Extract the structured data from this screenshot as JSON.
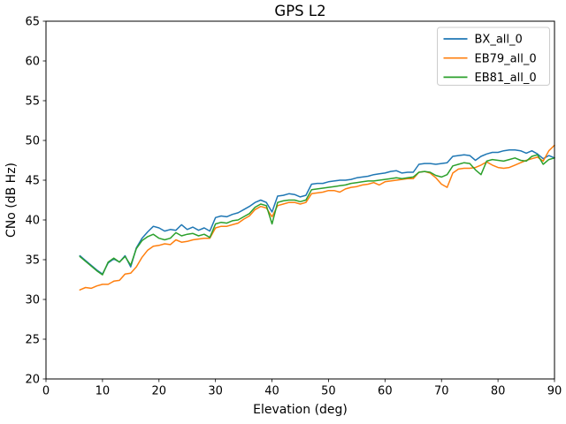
{
  "chart_data": {
    "type": "line",
    "title": "GPS L2",
    "xlabel": "Elevation (deg)",
    "ylabel": "CNo (dB Hz)",
    "xlim": [
      0,
      90
    ],
    "ylim": [
      20,
      65
    ],
    "xticks": [
      0,
      10,
      20,
      30,
      40,
      50,
      60,
      70,
      80,
      90
    ],
    "yticks": [
      20,
      25,
      30,
      35,
      40,
      45,
      50,
      55,
      60,
      65
    ],
    "grid": false,
    "legend_position": "upper right",
    "axis_color": "#000000",
    "x": [
      6,
      7,
      8,
      9,
      10,
      11,
      12,
      13,
      14,
      15,
      16,
      17,
      18,
      19,
      20,
      21,
      22,
      23,
      24,
      25,
      26,
      27,
      28,
      29,
      30,
      31,
      32,
      33,
      34,
      35,
      36,
      37,
      38,
      39,
      40,
      41,
      42,
      43,
      44,
      45,
      46,
      47,
      48,
      49,
      50,
      51,
      52,
      53,
      54,
      55,
      56,
      57,
      58,
      59,
      60,
      61,
      62,
      63,
      64,
      65,
      66,
      67,
      68,
      69,
      70,
      71,
      72,
      73,
      74,
      75,
      76,
      77,
      78,
      79,
      80,
      81,
      82,
      83,
      84,
      85,
      86,
      87,
      88,
      89,
      90
    ],
    "series": [
      {
        "name": "BX_all_0",
        "color": "#1f77b4",
        "values": [
          35.5,
          34.9,
          34.3,
          33.7,
          33.2,
          34.6,
          35.1,
          34.7,
          35.5,
          34.1,
          36.5,
          37.7,
          38.5,
          39.2,
          39.0,
          38.6,
          38.8,
          38.7,
          39.4,
          38.8,
          39.1,
          38.7,
          39.0,
          38.6,
          40.3,
          40.5,
          40.4,
          40.7,
          40.9,
          41.3,
          41.7,
          42.2,
          42.5,
          42.2,
          41.0,
          43.0,
          43.1,
          43.3,
          43.2,
          42.9,
          43.1,
          44.5,
          44.6,
          44.6,
          44.8,
          44.9,
          45.0,
          45.0,
          45.1,
          45.3,
          45.4,
          45.5,
          45.7,
          45.8,
          45.9,
          46.1,
          46.2,
          45.9,
          46.0,
          46.0,
          47.0,
          47.1,
          47.1,
          47.0,
          47.1,
          47.2,
          48.0,
          48.1,
          48.2,
          48.1,
          47.5,
          48.0,
          48.3,
          48.5,
          48.5,
          48.7,
          48.8,
          48.8,
          48.7,
          48.4,
          48.7,
          48.3,
          47.7,
          48.1,
          47.8
        ]
      },
      {
        "name": "EB79_all_0",
        "color": "#ff7f0e",
        "values": [
          31.2,
          31.5,
          31.4,
          31.7,
          31.9,
          31.9,
          32.3,
          32.4,
          33.2,
          33.3,
          34.1,
          35.3,
          36.2,
          36.7,
          36.8,
          37.0,
          36.9,
          37.5,
          37.2,
          37.3,
          37.5,
          37.6,
          37.7,
          37.7,
          39.0,
          39.2,
          39.2,
          39.4,
          39.6,
          40.1,
          40.5,
          41.3,
          41.7,
          41.5,
          40.4,
          41.8,
          42.0,
          42.2,
          42.2,
          42.0,
          42.2,
          43.3,
          43.4,
          43.5,
          43.7,
          43.7,
          43.5,
          43.9,
          44.1,
          44.2,
          44.4,
          44.5,
          44.7,
          44.4,
          44.8,
          44.9,
          45.0,
          45.1,
          45.2,
          45.2,
          46.0,
          46.1,
          45.9,
          45.3,
          44.5,
          44.1,
          45.9,
          46.4,
          46.5,
          46.5,
          46.6,
          46.9,
          47.3,
          46.9,
          46.6,
          46.5,
          46.6,
          46.9,
          47.2,
          47.5,
          47.7,
          47.9,
          47.4,
          48.7,
          49.4
        ]
      },
      {
        "name": "EB81_all_0",
        "color": "#2ca02c",
        "values": [
          35.4,
          34.8,
          34.2,
          33.6,
          33.1,
          34.7,
          35.2,
          34.7,
          35.4,
          34.3,
          36.4,
          37.4,
          37.9,
          38.2,
          37.7,
          37.5,
          37.7,
          38.4,
          38.0,
          38.2,
          38.3,
          38.0,
          38.2,
          37.8,
          39.5,
          39.7,
          39.6,
          39.9,
          40.0,
          40.4,
          40.8,
          41.6,
          42.0,
          41.8,
          39.5,
          42.2,
          42.4,
          42.5,
          42.5,
          42.3,
          42.5,
          43.8,
          43.9,
          44.0,
          44.1,
          44.2,
          44.3,
          44.4,
          44.6,
          44.7,
          44.8,
          44.9,
          44.9,
          45.0,
          45.1,
          45.2,
          45.3,
          45.2,
          45.3,
          45.4,
          46.0,
          46.1,
          46.0,
          45.6,
          45.4,
          45.7,
          46.8,
          47.0,
          47.2,
          47.1,
          46.3,
          45.7,
          47.4,
          47.6,
          47.5,
          47.4,
          47.6,
          47.8,
          47.5,
          47.4,
          48.0,
          48.2,
          47.0,
          47.6,
          47.8
        ]
      }
    ],
    "legend": {
      "entries": [
        "BX_all_0",
        "EB79_all_0",
        "EB81_all_0"
      ],
      "border_color": "#cccccc",
      "background": "#ffffff"
    }
  }
}
